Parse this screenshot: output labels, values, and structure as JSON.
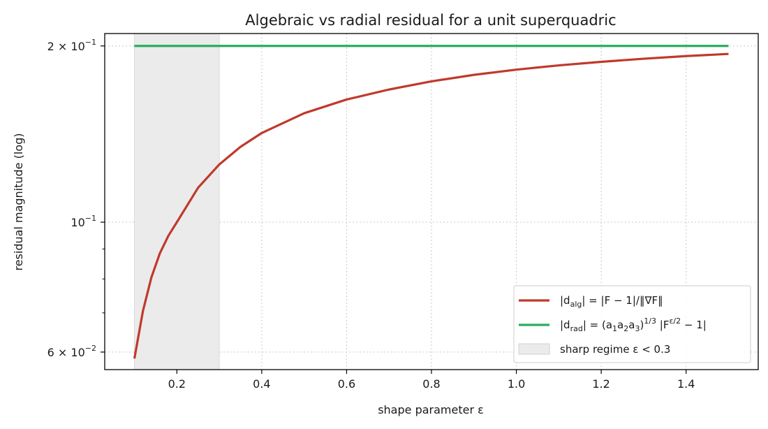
{
  "chart_data": {
    "type": "line",
    "title": "Algebraic vs radial residual for a unit superquadric",
    "xlabel": "shape parameter ε",
    "ylabel": "residual magnitude (log)",
    "xlim": [
      0.03,
      1.57
    ],
    "ylim": [
      0.056,
      0.21
    ],
    "yscale": "log",
    "grid": "on",
    "legend_position": "lower-right",
    "x_ticks": [
      {
        "value": 0.2,
        "label": "0.2"
      },
      {
        "value": 0.4,
        "label": "0.4"
      },
      {
        "value": 0.6,
        "label": "0.6"
      },
      {
        "value": 0.8,
        "label": "0.8"
      },
      {
        "value": 1.0,
        "label": "1.0"
      },
      {
        "value": 1.2,
        "label": "1.2"
      },
      {
        "value": 1.4,
        "label": "1.4"
      }
    ],
    "y_ticks": [
      {
        "value": 0.06,
        "label_base": "6 × 10",
        "label_exp": "−2"
      },
      {
        "value": 0.1,
        "label_base": "10",
        "label_exp": "−1"
      },
      {
        "value": 0.2,
        "label_base": "2 × 10",
        "label_exp": "−1"
      }
    ],
    "y_minor_ticks": [
      0.07,
      0.08,
      0.09
    ],
    "shaded_region": {
      "x": [
        0.1,
        0.3
      ],
      "color": "#ebebeb",
      "legend_label": "sharp regime ε < 0.3"
    },
    "series": [
      {
        "name": "|d_alg| = |F − 1|/‖∇F‖",
        "color": "#c0392b",
        "x": [
          0.1,
          0.12,
          0.14,
          0.16,
          0.18,
          0.2,
          0.25,
          0.3,
          0.35,
          0.4,
          0.5,
          0.6,
          0.7,
          0.8,
          0.9,
          1.0,
          1.1,
          1.2,
          1.3,
          1.4,
          1.5
        ],
        "y": [
          0.0585,
          0.0705,
          0.0805,
          0.0885,
          0.0948,
          0.1,
          0.1145,
          0.1255,
          0.1345,
          0.142,
          0.1535,
          0.162,
          0.1685,
          0.174,
          0.1785,
          0.1822,
          0.1853,
          0.1879,
          0.1902,
          0.1922,
          0.1938
        ]
      },
      {
        "name": "|d_rad| = (a₁a₂a₃)^{1/3} |F^{ε/2} − 1|",
        "color": "#27ae60",
        "x": [
          0.1,
          1.5
        ],
        "y": [
          0.2,
          0.2
        ]
      }
    ]
  },
  "legend": {
    "alg_pre": "|d",
    "alg_sub": "alg",
    "alg_post": "| = |F − 1|/‖∇F‖",
    "rad_pre": "|d",
    "rad_sub": "rad",
    "rad_mid": "| = (a",
    "rad_s1": "1",
    "rad_a2": "a",
    "rad_s2": "2",
    "rad_a3": "a",
    "rad_s3": "3",
    "rad_close": ")",
    "rad_sup": "1/3",
    "rad_mid2": " |F",
    "rad_sup2": "ε/2",
    "rad_post": " − 1|",
    "shade": "sharp regime ε < 0.3"
  }
}
